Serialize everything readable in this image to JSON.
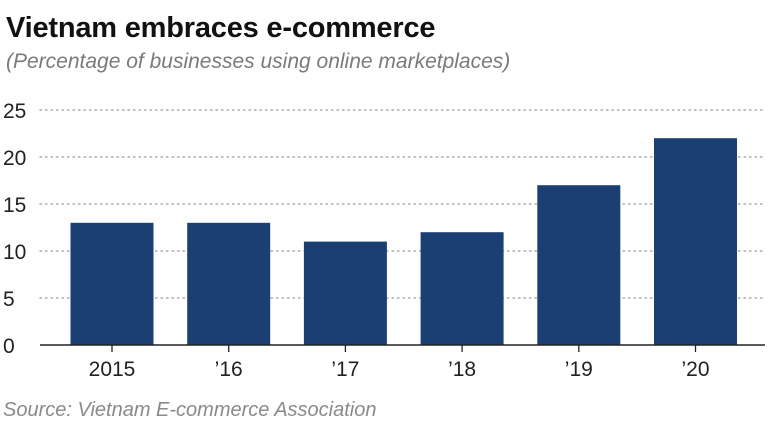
{
  "header": {
    "title": "Vietnam embraces e-commerce",
    "subtitle": "(Percentage of businesses using online marketplaces)"
  },
  "footer": {
    "source": "Source: Vietnam E-commerce Association"
  },
  "colors": {
    "bar": "#1b3f73",
    "grid": "#9a9a9a",
    "axis": "#222222"
  },
  "chart_data": {
    "type": "bar",
    "title": "Vietnam embraces e-commerce",
    "subtitle": "(Percentage of businesses using online marketplaces)",
    "categories": [
      "2015",
      "’16",
      "’17",
      "’18",
      "’19",
      "’20"
    ],
    "values": [
      13,
      13,
      11,
      12,
      17,
      22
    ],
    "xlabel": "",
    "ylabel": "",
    "ylim": [
      0,
      25
    ],
    "yticks": [
      "0",
      "5",
      "10",
      "15",
      "20",
      "25"
    ],
    "grid": true,
    "legend": "none"
  }
}
